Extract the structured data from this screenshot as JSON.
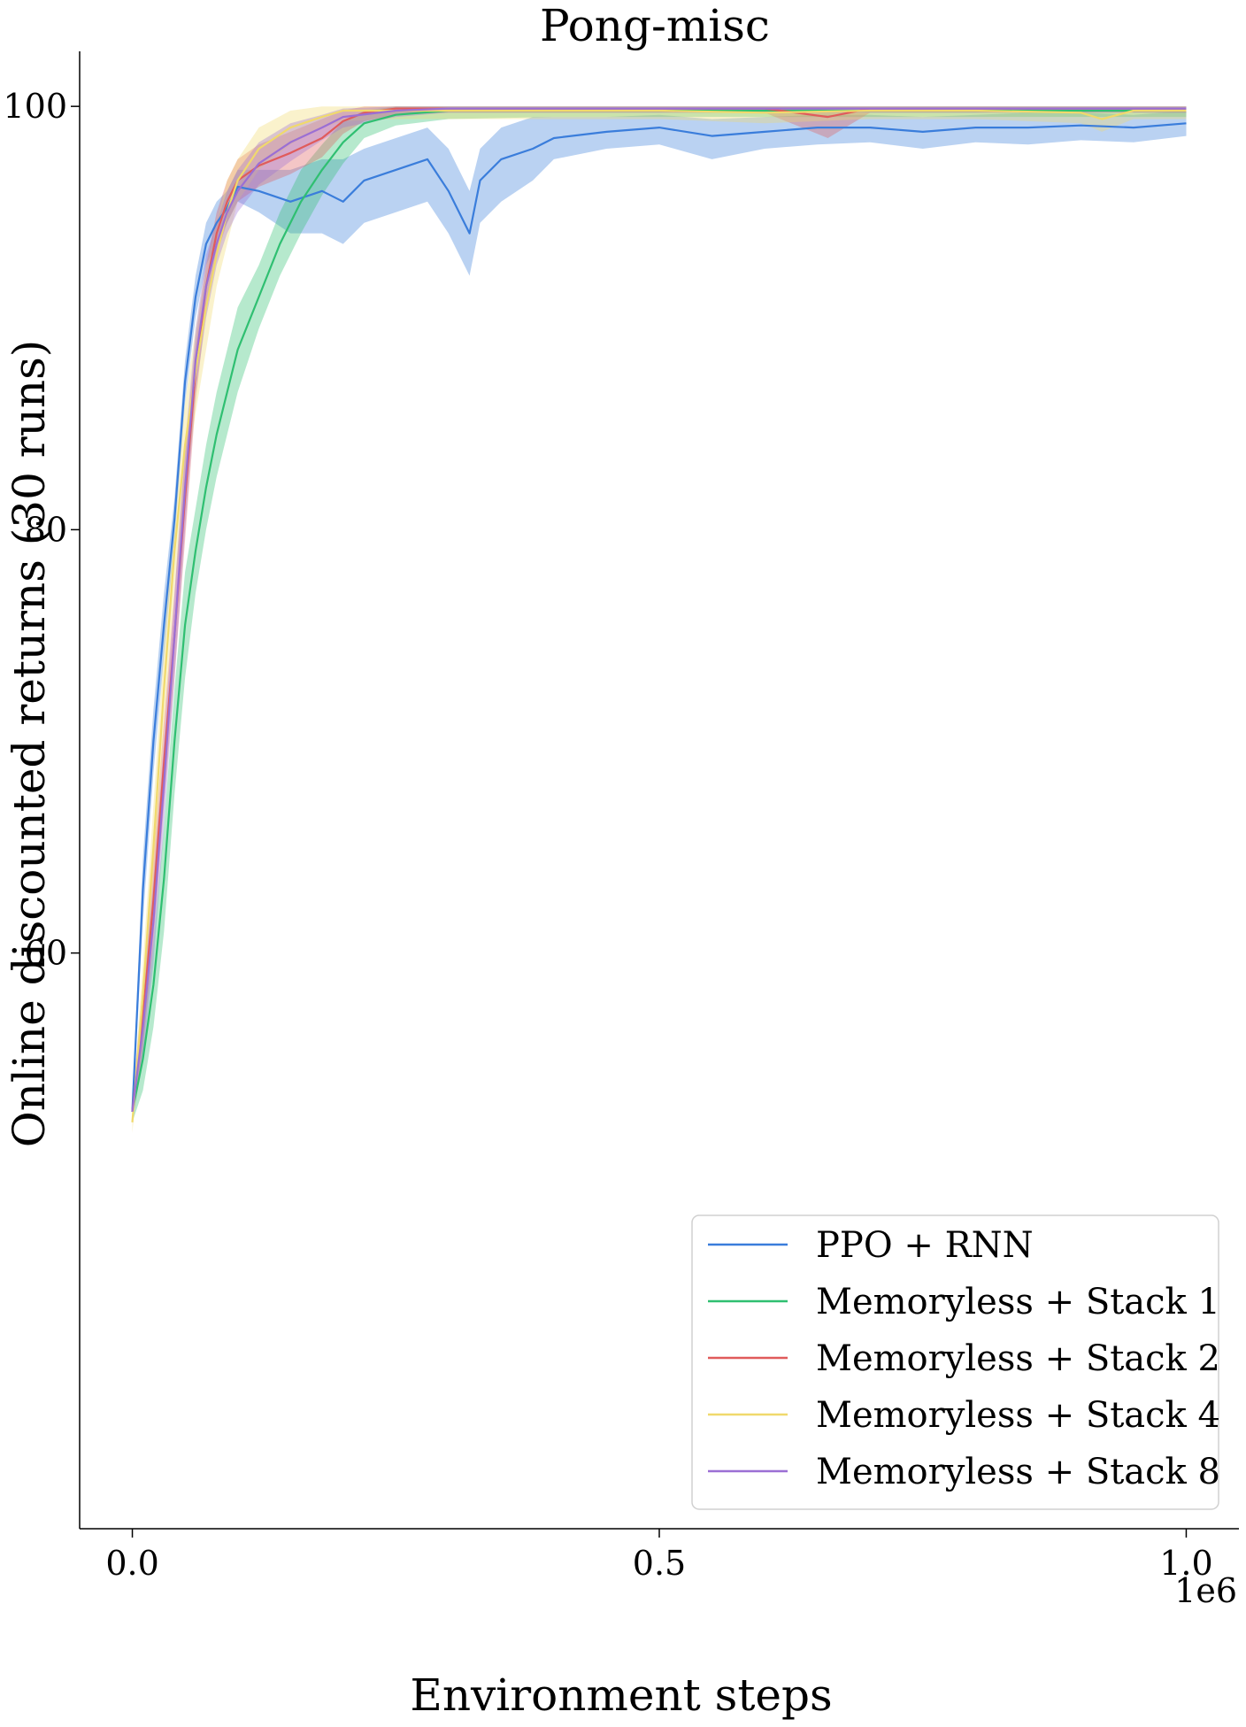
{
  "chart_data": {
    "type": "line",
    "title": "Pong-misc",
    "xlabel": "Environment steps",
    "ylabel": "Online discounted returns (30 runs)",
    "x_offset_label": "1e6",
    "xlim": [
      -0.05,
      1.05
    ],
    "ylim": [
      32.8,
      102.6
    ],
    "xticks": [
      0.0,
      0.5,
      1.0
    ],
    "xtick_labels": [
      "0.0",
      "0.5",
      "1.0"
    ],
    "yticks": [
      60,
      80,
      100
    ],
    "ytick_labels": [
      "60",
      "80",
      "100"
    ],
    "grid": false,
    "legend_position": "lower-right",
    "series": [
      {
        "name": "PPO + RNN",
        "color": "#3a7ddb",
        "x": [
          0.0,
          0.01,
          0.02,
          0.03,
          0.04,
          0.05,
          0.06,
          0.07,
          0.08,
          0.09,
          0.1,
          0.12,
          0.15,
          0.18,
          0.2,
          0.22,
          0.25,
          0.28,
          0.3,
          0.32,
          0.33,
          0.35,
          0.38,
          0.4,
          0.45,
          0.5,
          0.55,
          0.6,
          0.65,
          0.7,
          0.75,
          0.8,
          0.85,
          0.9,
          0.95,
          1.0
        ],
        "y": [
          52.5,
          63.0,
          70.0,
          75.5,
          80.5,
          87.0,
          91.0,
          93.5,
          94.5,
          95.2,
          96.2,
          96.0,
          95.5,
          96.0,
          95.5,
          96.5,
          97.0,
          97.5,
          96.0,
          94.0,
          96.5,
          97.5,
          98.0,
          98.5,
          98.8,
          99.0,
          98.6,
          98.8,
          99.0,
          99.0,
          98.8,
          99.0,
          99.0,
          99.1,
          99.0,
          99.2
        ],
        "lower": [
          52.0,
          61.5,
          68.5,
          74.0,
          79.5,
          86.0,
          90.0,
          92.5,
          93.5,
          94.5,
          95.5,
          95.0,
          94.0,
          94.0,
          93.5,
          94.5,
          95.0,
          95.5,
          94.0,
          92.0,
          94.5,
          95.5,
          96.5,
          97.5,
          98.0,
          98.2,
          97.5,
          98.0,
          98.2,
          98.3,
          98.0,
          98.3,
          98.2,
          98.4,
          98.3,
          98.6
        ],
        "upper": [
          53.0,
          64.5,
          71.5,
          77.0,
          81.5,
          88.0,
          92.0,
          94.5,
          95.5,
          96.0,
          97.0,
          97.0,
          97.0,
          97.5,
          97.5,
          98.0,
          98.5,
          99.0,
          98.0,
          96.0,
          98.0,
          99.0,
          99.5,
          99.5,
          99.5,
          99.6,
          99.4,
          99.5,
          99.6,
          99.6,
          99.5,
          99.6,
          99.7,
          99.7,
          99.6,
          99.8
        ]
      },
      {
        "name": "Memoryless + Stack 1",
        "color": "#2fbf71",
        "x": [
          0.0,
          0.01,
          0.02,
          0.03,
          0.04,
          0.05,
          0.06,
          0.07,
          0.08,
          0.09,
          0.1,
          0.12,
          0.14,
          0.16,
          0.18,
          0.2,
          0.22,
          0.25,
          0.3,
          0.4,
          0.5,
          0.6,
          0.7,
          0.8,
          0.9,
          1.0
        ],
        "y": [
          52.5,
          55.0,
          58.5,
          63.5,
          70.0,
          75.5,
          79.0,
          82.0,
          84.5,
          86.5,
          88.5,
          91.0,
          93.5,
          95.5,
          97.0,
          98.3,
          99.2,
          99.6,
          99.8,
          99.8,
          99.8,
          99.8,
          99.8,
          99.8,
          99.8,
          99.8
        ],
        "lower": [
          52.0,
          53.5,
          56.5,
          61.0,
          67.5,
          73.0,
          77.0,
          80.0,
          82.5,
          84.5,
          86.5,
          89.5,
          92.0,
          94.0,
          95.8,
          97.3,
          98.5,
          99.1,
          99.4,
          99.5,
          99.5,
          99.5,
          99.5,
          99.5,
          99.5,
          99.5
        ],
        "upper": [
          53.0,
          56.5,
          60.5,
          66.0,
          72.5,
          78.0,
          81.0,
          84.0,
          86.5,
          88.5,
          90.5,
          92.5,
          95.0,
          97.0,
          98.2,
          99.3,
          99.8,
          100.0,
          100.0,
          100.0,
          100.0,
          100.0,
          100.0,
          100.0,
          100.0,
          100.0
        ]
      },
      {
        "name": "Memoryless + Stack 2",
        "color": "#e05b5b",
        "x": [
          0.0,
          0.01,
          0.02,
          0.03,
          0.04,
          0.05,
          0.06,
          0.07,
          0.08,
          0.09,
          0.1,
          0.12,
          0.15,
          0.18,
          0.2,
          0.22,
          0.25,
          0.3,
          0.4,
          0.5,
          0.6,
          0.66,
          0.7,
          0.8,
          0.9,
          1.0
        ],
        "y": [
          52.5,
          57.0,
          62.5,
          69.0,
          75.0,
          81.5,
          87.5,
          91.5,
          94.0,
          95.5,
          96.5,
          97.2,
          97.8,
          98.5,
          99.3,
          99.7,
          99.9,
          99.9,
          99.9,
          99.9,
          99.9,
          99.5,
          99.9,
          99.9,
          99.9,
          99.9
        ],
        "lower": [
          52.0,
          55.5,
          60.5,
          67.0,
          73.0,
          79.5,
          86.0,
          90.5,
          93.0,
          94.5,
          95.5,
          96.2,
          96.8,
          97.6,
          98.7,
          99.3,
          99.6,
          99.7,
          99.7,
          99.7,
          99.7,
          98.5,
          99.7,
          99.7,
          99.7,
          99.7
        ],
        "upper": [
          53.0,
          58.5,
          64.5,
          71.0,
          77.0,
          83.5,
          89.0,
          92.5,
          95.0,
          96.5,
          97.5,
          98.2,
          98.8,
          99.4,
          99.8,
          100.0,
          100.0,
          100.0,
          100.0,
          100.0,
          100.0,
          100.0,
          100.0,
          100.0,
          100.0,
          100.0
        ]
      },
      {
        "name": "Memoryless + Stack 4",
        "color": "#f0d96c",
        "x": [
          0.0,
          0.01,
          0.02,
          0.03,
          0.04,
          0.05,
          0.06,
          0.07,
          0.08,
          0.09,
          0.1,
          0.12,
          0.15,
          0.18,
          0.2,
          0.25,
          0.3,
          0.4,
          0.5,
          0.6,
          0.7,
          0.8,
          0.9,
          0.92,
          0.95,
          1.0
        ],
        "y": [
          52.0,
          58.0,
          65.0,
          72.5,
          79.0,
          84.0,
          87.5,
          90.5,
          93.0,
          95.0,
          96.5,
          98.0,
          99.0,
          99.5,
          99.8,
          99.8,
          99.8,
          99.8,
          99.8,
          99.7,
          99.8,
          99.8,
          99.7,
          99.4,
          99.8,
          99.8
        ],
        "lower": [
          51.5,
          56.5,
          63.0,
          70.5,
          77.0,
          82.0,
          85.5,
          88.5,
          91.5,
          93.5,
          95.5,
          97.0,
          98.2,
          99.0,
          99.3,
          99.4,
          99.4,
          99.4,
          99.4,
          99.2,
          99.4,
          99.4,
          99.2,
          98.8,
          99.4,
          99.4
        ],
        "upper": [
          52.5,
          59.5,
          67.0,
          74.5,
          81.0,
          86.0,
          89.5,
          92.5,
          94.5,
          96.5,
          97.5,
          99.0,
          99.8,
          100.0,
          100.0,
          100.0,
          100.0,
          100.0,
          100.0,
          100.0,
          100.0,
          100.0,
          100.0,
          100.0,
          100.0,
          100.0
        ]
      },
      {
        "name": "Memoryless + Stack 8",
        "color": "#9b6fd4",
        "x": [
          0.0,
          0.01,
          0.02,
          0.03,
          0.04,
          0.05,
          0.06,
          0.07,
          0.08,
          0.09,
          0.1,
          0.12,
          0.15,
          0.18,
          0.2,
          0.25,
          0.3,
          0.4,
          0.5,
          0.6,
          0.7,
          0.8,
          0.9,
          1.0
        ],
        "y": [
          52.5,
          56.5,
          61.5,
          68.0,
          75.0,
          82.0,
          88.0,
          91.5,
          93.5,
          95.0,
          96.0,
          97.3,
          98.3,
          99.0,
          99.5,
          99.8,
          99.9,
          99.9,
          99.9,
          99.9,
          99.9,
          99.9,
          99.9,
          99.9
        ],
        "lower": [
          52.0,
          55.0,
          59.5,
          66.0,
          73.0,
          80.0,
          86.5,
          90.0,
          92.5,
          94.0,
          95.0,
          96.3,
          97.4,
          98.4,
          99.0,
          99.5,
          99.7,
          99.7,
          99.7,
          99.7,
          99.7,
          99.7,
          99.7,
          99.7
        ],
        "upper": [
          53.0,
          58.0,
          63.5,
          70.0,
          77.0,
          84.0,
          89.5,
          93.0,
          94.5,
          96.0,
          97.0,
          98.3,
          99.2,
          99.6,
          99.9,
          100.0,
          100.0,
          100.0,
          100.0,
          100.0,
          100.0,
          100.0,
          100.0,
          100.0
        ]
      }
    ]
  }
}
